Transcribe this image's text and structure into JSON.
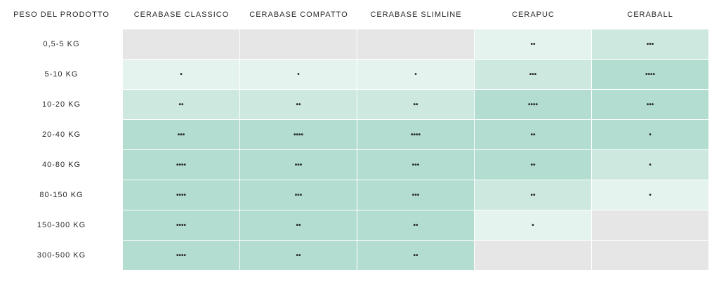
{
  "table": {
    "corner_header": "PESO DEL PRODOTTO",
    "columns": [
      "CERABASE CLASSICO",
      "CERABASE COMPATTO",
      "CERABASE SLIMLINE",
      "CERAPUC",
      "CERABALL"
    ],
    "rows": [
      {
        "label": "0,5-5 KG",
        "cells": [
          {
            "v": "",
            "lvl": 0
          },
          {
            "v": "",
            "lvl": 0
          },
          {
            "v": "",
            "lvl": 0
          },
          {
            "v": "••",
            "lvl": 1
          },
          {
            "v": "•••",
            "lvl": 2
          }
        ]
      },
      {
        "label": "5-10 KG",
        "cells": [
          {
            "v": "•",
            "lvl": 1
          },
          {
            "v": "•",
            "lvl": 1
          },
          {
            "v": "•",
            "lvl": 1
          },
          {
            "v": "•••",
            "lvl": 2
          },
          {
            "v": "••••",
            "lvl": 3
          }
        ]
      },
      {
        "label": "10-20 KG",
        "cells": [
          {
            "v": "••",
            "lvl": 2
          },
          {
            "v": "••",
            "lvl": 2
          },
          {
            "v": "••",
            "lvl": 2
          },
          {
            "v": "••••",
            "lvl": 3
          },
          {
            "v": "•••",
            "lvl": 3
          }
        ]
      },
      {
        "label": "20-40 KG",
        "cells": [
          {
            "v": "•••",
            "lvl": 3
          },
          {
            "v": "••••",
            "lvl": 3
          },
          {
            "v": "••••",
            "lvl": 3
          },
          {
            "v": "••",
            "lvl": 3
          },
          {
            "v": "•",
            "lvl": 3
          }
        ]
      },
      {
        "label": "40-80 KG",
        "cells": [
          {
            "v": "••••",
            "lvl": 3
          },
          {
            "v": "•••",
            "lvl": 3
          },
          {
            "v": "•••",
            "lvl": 3
          },
          {
            "v": "••",
            "lvl": 3
          },
          {
            "v": "•",
            "lvl": 2
          }
        ]
      },
      {
        "label": "80-150 KG",
        "cells": [
          {
            "v": "••••",
            "lvl": 3
          },
          {
            "v": "•••",
            "lvl": 3
          },
          {
            "v": "•••",
            "lvl": 3
          },
          {
            "v": "••",
            "lvl": 2
          },
          {
            "v": "•",
            "lvl": 1
          }
        ]
      },
      {
        "label": "150-300 KG",
        "cells": [
          {
            "v": "••••",
            "lvl": 3
          },
          {
            "v": "••",
            "lvl": 3
          },
          {
            "v": "••",
            "lvl": 3
          },
          {
            "v": "•",
            "lvl": 1
          },
          {
            "v": "",
            "lvl": 0
          }
        ]
      },
      {
        "label": "300-500 KG",
        "cells": [
          {
            "v": "••••",
            "lvl": 3
          },
          {
            "v": "••",
            "lvl": 3
          },
          {
            "v": "••",
            "lvl": 3
          },
          {
            "v": "",
            "lvl": 0
          },
          {
            "v": "",
            "lvl": 0
          }
        ]
      }
    ]
  },
  "colors": {
    "none": "#e6e6e6",
    "light": "#e4f3ee",
    "medium": "#cde8df",
    "strong": "#b2ddd0"
  }
}
